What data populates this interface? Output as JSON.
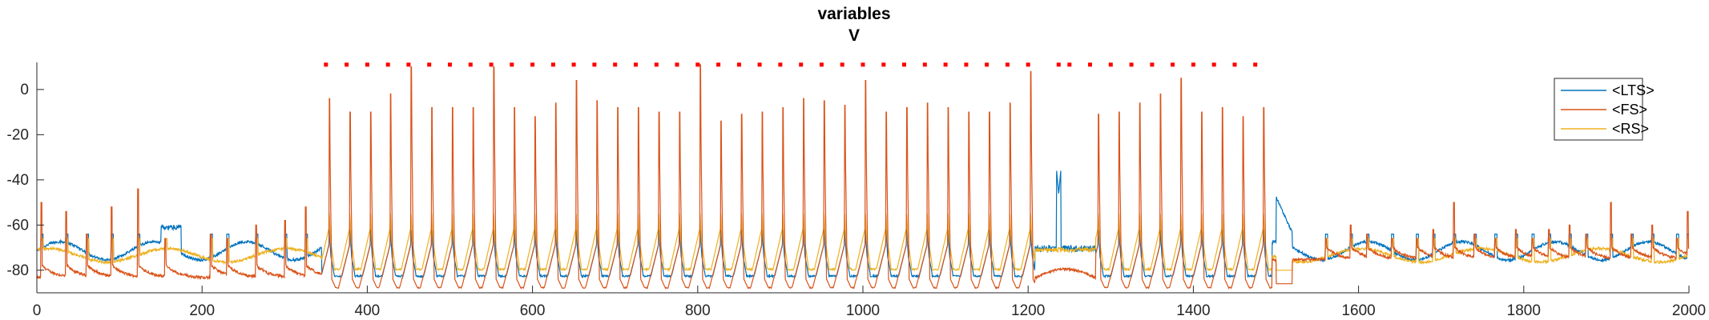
{
  "chart_data": {
    "type": "line",
    "title": "variables",
    "subtitle": "V",
    "xlabel": "",
    "ylabel": "",
    "xlim": [
      0,
      2000
    ],
    "ylim": [
      -90,
      12
    ],
    "grid": false,
    "legend_placement": "top-right",
    "x_ticks": [
      0,
      200,
      400,
      600,
      800,
      1000,
      1200,
      1400,
      1600,
      1800,
      2000
    ],
    "y_ticks": [
      0,
      -20,
      -40,
      -60,
      -80
    ],
    "series": [
      {
        "name": "<LTS>",
        "color": "#0072BD"
      },
      {
        "name": "<FS>",
        "color": "#D95319"
      },
      {
        "name": "<RS>",
        "color": "#EDB120"
      }
    ],
    "fs_spikes": [
      {
        "t": 354,
        "peak": -4
      },
      {
        "t": 379,
        "peak": -10
      },
      {
        "t": 404,
        "peak": -10
      },
      {
        "t": 428,
        "peak": -2
      },
      {
        "t": 453,
        "peak": 10
      },
      {
        "t": 478,
        "peak": -8
      },
      {
        "t": 503,
        "peak": -8
      },
      {
        "t": 528,
        "peak": -8
      },
      {
        "t": 553,
        "peak": 10
      },
      {
        "t": 578,
        "peak": -8
      },
      {
        "t": 603,
        "peak": -12
      },
      {
        "t": 628,
        "peak": -6
      },
      {
        "t": 653,
        "peak": 4
      },
      {
        "t": 678,
        "peak": -5
      },
      {
        "t": 703,
        "peak": -8
      },
      {
        "t": 728,
        "peak": -8
      },
      {
        "t": 753,
        "peak": -10
      },
      {
        "t": 778,
        "peak": -10
      },
      {
        "t": 803,
        "peak": 11
      },
      {
        "t": 828,
        "peak": -14
      },
      {
        "t": 853,
        "peak": -11
      },
      {
        "t": 878,
        "peak": -10
      },
      {
        "t": 903,
        "peak": -8
      },
      {
        "t": 928,
        "peak": -4
      },
      {
        "t": 953,
        "peak": -5
      },
      {
        "t": 978,
        "peak": -7
      },
      {
        "t": 1003,
        "peak": 4
      },
      {
        "t": 1028,
        "peak": -10
      },
      {
        "t": 1053,
        "peak": -8
      },
      {
        "t": 1078,
        "peak": -6
      },
      {
        "t": 1103,
        "peak": -8
      },
      {
        "t": 1128,
        "peak": -10
      },
      {
        "t": 1153,
        "peak": -10
      },
      {
        "t": 1178,
        "peak": -6
      },
      {
        "t": 1203,
        "peak": 8
      },
      {
        "t": 1285,
        "peak": -11
      },
      {
        "t": 1310,
        "peak": -10
      },
      {
        "t": 1335,
        "peak": -6
      },
      {
        "t": 1360,
        "peak": -2
      },
      {
        "t": 1385,
        "peak": 5
      },
      {
        "t": 1410,
        "peak": -10
      },
      {
        "t": 1435,
        "peak": -8
      },
      {
        "t": 1460,
        "peak": -12
      },
      {
        "t": 1485,
        "peak": -8
      }
    ],
    "spike_raster": {
      "color": "#FF0000",
      "y": 11,
      "times": [
        350,
        375,
        400,
        425,
        450,
        475,
        500,
        525,
        550,
        575,
        600,
        625,
        650,
        675,
        700,
        725,
        750,
        775,
        800,
        825,
        850,
        875,
        900,
        925,
        950,
        975,
        1000,
        1025,
        1050,
        1075,
        1100,
        1125,
        1150,
        1175,
        1200,
        1237,
        1250,
        1275,
        1300,
        1325,
        1350,
        1375,
        1400,
        1425,
        1450,
        1475
      ]
    }
  }
}
